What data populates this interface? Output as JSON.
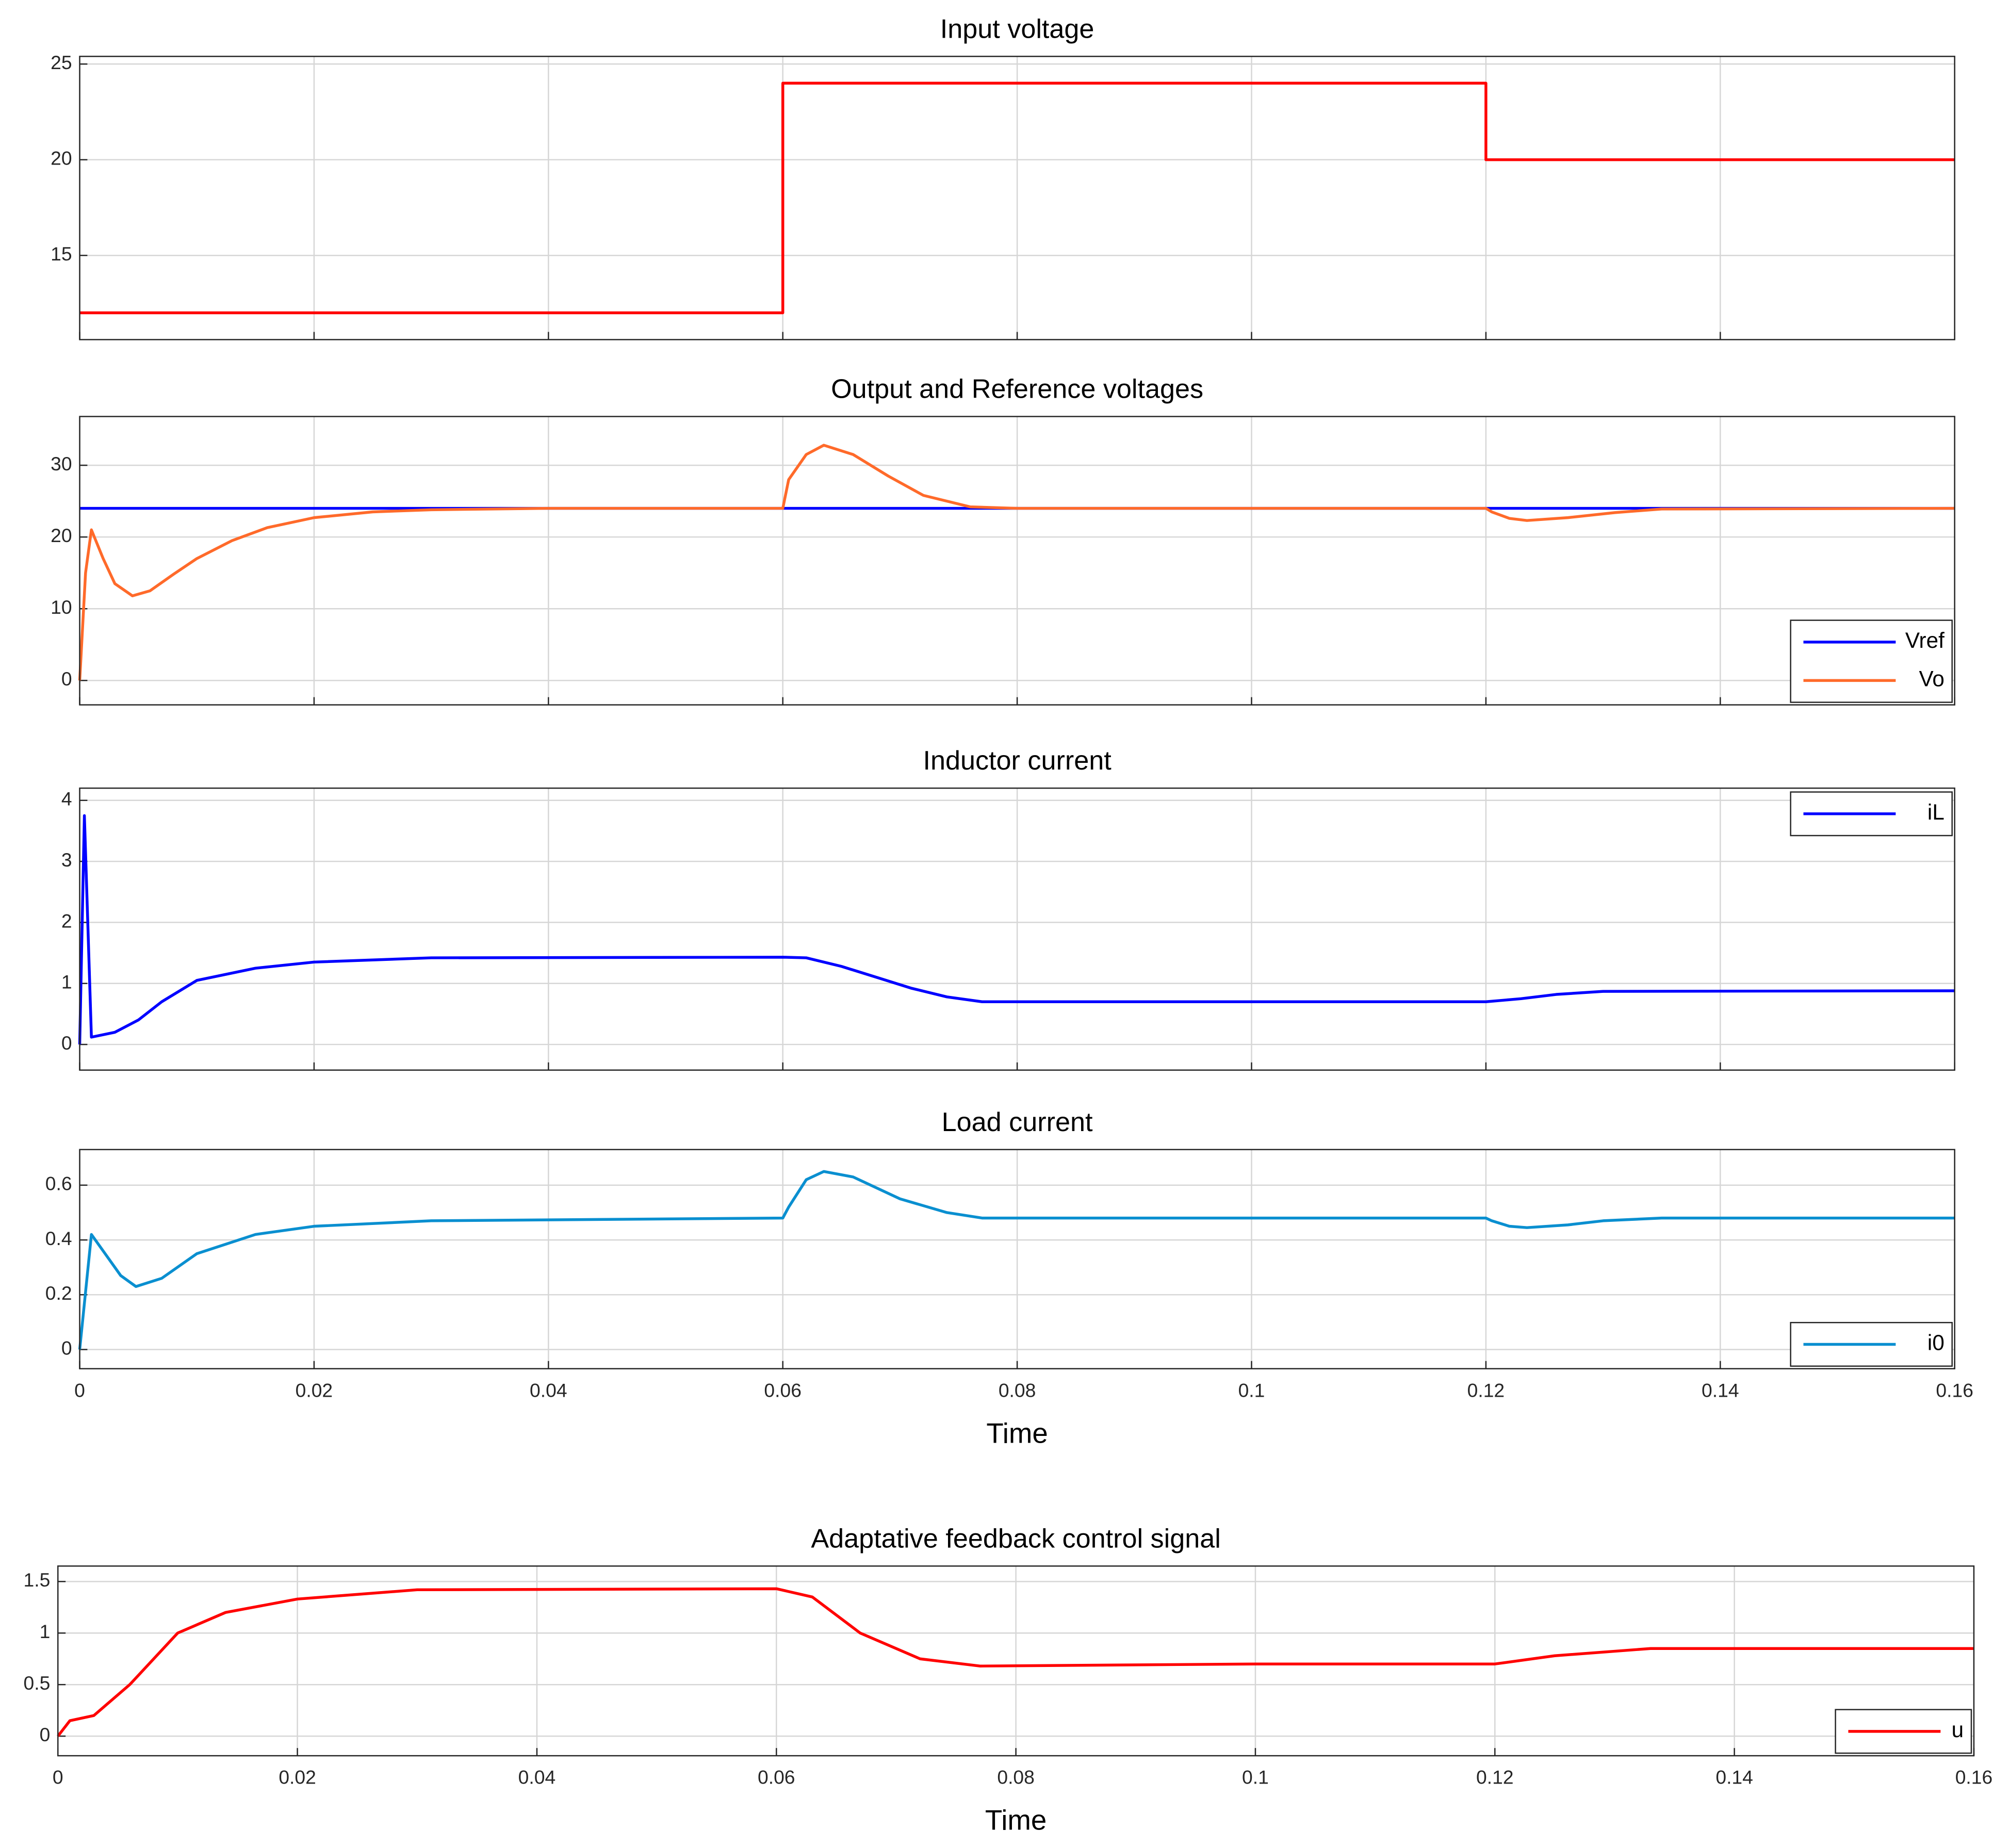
{
  "chart_data": [
    {
      "type": "line",
      "title": "Input voltage",
      "x": [
        0,
        0.06,
        0.06,
        0.12,
        0.12,
        0.16
      ],
      "series": [
        {
          "color": "#ff0000",
          "values": [
            12,
            12,
            24,
            24,
            20,
            20
          ]
        }
      ],
      "xlim": [
        0,
        0.16
      ],
      "xticks": [
        0,
        0.02,
        0.04,
        0.06,
        0.08,
        0.1,
        0.12,
        0.14,
        0.16
      ],
      "ylim": [
        10.6,
        25.4
      ],
      "yticks": [
        15,
        20,
        25
      ],
      "grid": true
    },
    {
      "type": "line",
      "title": "Output and Reference voltages",
      "x": [
        0,
        0.0005,
        0.001,
        0.002,
        0.003,
        0.0045,
        0.006,
        0.008,
        0.01,
        0.013,
        0.016,
        0.02,
        0.025,
        0.03,
        0.04,
        0.06,
        0.0605,
        0.062,
        0.0635,
        0.066,
        0.069,
        0.072,
        0.076,
        0.08,
        0.12,
        0.1205,
        0.122,
        0.1235,
        0.127,
        0.131,
        0.135,
        0.16
      ],
      "series": [
        {
          "name": "Vref",
          "color": "#0000ff",
          "values": [
            24,
            24,
            24,
            24,
            24,
            24,
            24,
            24,
            24,
            24,
            24,
            24,
            24,
            24,
            24,
            24,
            24,
            24,
            24,
            24,
            24,
            24,
            24,
            24,
            24,
            24,
            24,
            24,
            24,
            24,
            24,
            24
          ]
        },
        {
          "name": "Vo",
          "color": "#ff6a2a",
          "values": [
            0,
            15,
            21,
            17,
            13.5,
            11.8,
            12.5,
            14.8,
            17,
            19.5,
            21.3,
            22.7,
            23.5,
            23.8,
            24,
            24,
            28,
            31.5,
            32.8,
            31.5,
            28.5,
            25.8,
            24.2,
            24,
            24,
            23.5,
            22.6,
            22.3,
            22.7,
            23.4,
            23.9,
            24
          ]
        }
      ],
      "xlim": [
        0,
        0.16
      ],
      "xticks": [
        0,
        0.02,
        0.04,
        0.06,
        0.08,
        0.1,
        0.12,
        0.14,
        0.16
      ],
      "ylim": [
        -3.4,
        36.8
      ],
      "yticks": [
        0,
        10,
        20,
        30
      ],
      "grid": true,
      "legend": "lower right"
    },
    {
      "type": "line",
      "title": "Inductor current",
      "x": [
        0,
        0.0004,
        0.001,
        0.003,
        0.005,
        0.007,
        0.01,
        0.015,
        0.02,
        0.03,
        0.06,
        0.062,
        0.065,
        0.068,
        0.071,
        0.074,
        0.077,
        0.12,
        0.123,
        0.126,
        0.13,
        0.16
      ],
      "series": [
        {
          "name": "iL",
          "color": "#0000ff",
          "values": [
            0,
            3.75,
            0.12,
            0.2,
            0.4,
            0.7,
            1.05,
            1.25,
            1.35,
            1.42,
            1.43,
            1.42,
            1.28,
            1.1,
            0.92,
            0.78,
            0.7,
            0.7,
            0.75,
            0.82,
            0.87,
            0.88
          ]
        }
      ],
      "xlim": [
        0,
        0.16
      ],
      "xticks": [
        0,
        0.02,
        0.04,
        0.06,
        0.08,
        0.1,
        0.12,
        0.14,
        0.16
      ],
      "ylim": [
        -0.42,
        4.2
      ],
      "yticks": [
        0,
        1,
        2,
        3,
        4
      ],
      "grid": true,
      "legend": "upper right"
    },
    {
      "type": "line",
      "title": "Load current",
      "xlabel": "Time",
      "x": [
        0,
        0.001,
        0.002,
        0.0035,
        0.0048,
        0.007,
        0.01,
        0.015,
        0.02,
        0.03,
        0.06,
        0.0605,
        0.062,
        0.0635,
        0.066,
        0.07,
        0.074,
        0.077,
        0.12,
        0.1205,
        0.122,
        0.1235,
        0.127,
        0.13,
        0.135,
        0.16
      ],
      "series": [
        {
          "name": "i0",
          "color": "#0a8fd0",
          "values": [
            0,
            0.42,
            0.36,
            0.27,
            0.23,
            0.26,
            0.35,
            0.42,
            0.45,
            0.47,
            0.48,
            0.52,
            0.62,
            0.65,
            0.63,
            0.55,
            0.5,
            0.48,
            0.48,
            0.47,
            0.45,
            0.445,
            0.455,
            0.47,
            0.48,
            0.48
          ]
        }
      ],
      "xlim": [
        0,
        0.16
      ],
      "xticks": [
        0,
        0.02,
        0.04,
        0.06,
        0.08,
        0.1,
        0.12,
        0.14,
        0.16
      ],
      "ylim": [
        -0.07,
        0.73
      ],
      "yticks": [
        0,
        0.2,
        0.4,
        0.6
      ],
      "grid": true,
      "legend": "lower right"
    },
    {
      "type": "line",
      "title": "Adaptative feedback control signal",
      "xlabel": "Time",
      "x": [
        0,
        0.001,
        0.003,
        0.006,
        0.01,
        0.014,
        0.02,
        0.03,
        0.06,
        0.063,
        0.067,
        0.072,
        0.077,
        0.1,
        0.12,
        0.125,
        0.133,
        0.16
      ],
      "series": [
        {
          "name": "u",
          "color": "#ff0000",
          "values": [
            0,
            0.15,
            0.2,
            0.5,
            1.0,
            1.2,
            1.33,
            1.42,
            1.43,
            1.35,
            1.0,
            0.75,
            0.68,
            0.7,
            0.7,
            0.78,
            0.85,
            0.85
          ]
        }
      ],
      "xlim": [
        0,
        0.16
      ],
      "xticks": [
        0,
        0.02,
        0.04,
        0.06,
        0.08,
        0.1,
        0.12,
        0.14,
        0.16
      ],
      "ylim": [
        -0.19,
        1.65
      ],
      "yticks": [
        0,
        0.5,
        1,
        1.5
      ],
      "grid": true,
      "legend": "lower right"
    }
  ]
}
